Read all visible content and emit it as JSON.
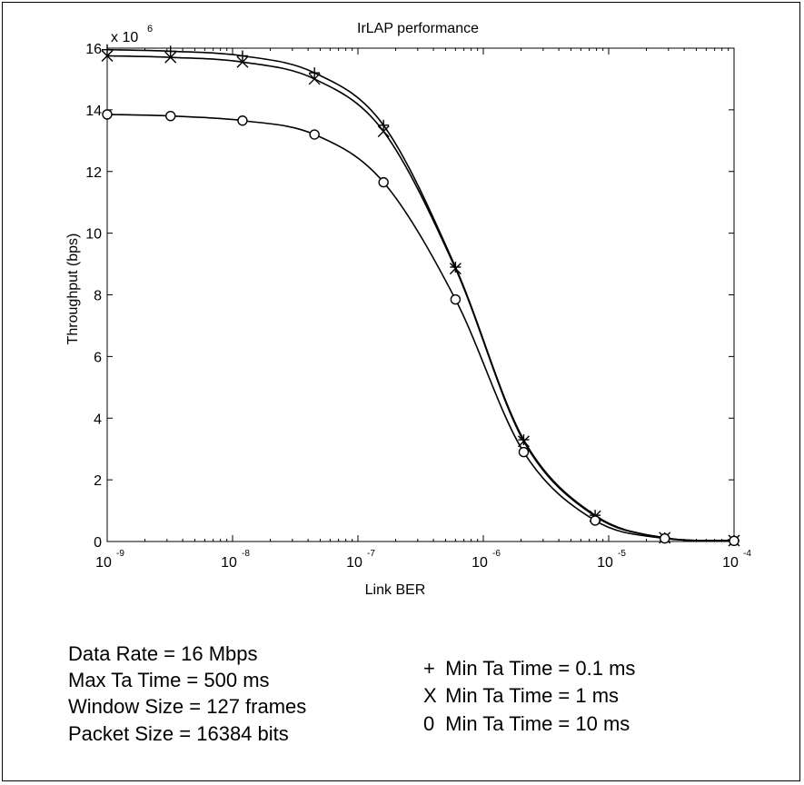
{
  "chart_data": {
    "type": "line",
    "title": "IrLAP performance",
    "xlabel": "Link BER",
    "ylabel": "Throughput (bps)",
    "y_multiplier": "x 10",
    "y_multiplier_exp": "6",
    "x_scale": "log",
    "xlim": [
      1e-09,
      0.0001
    ],
    "ylim": [
      0,
      16
    ],
    "grid": false,
    "x_ticks": [
      {
        "base": "10",
        "exp": "-9",
        "value": 1e-09
      },
      {
        "base": "10",
        "exp": "-8",
        "value": 1e-08
      },
      {
        "base": "10",
        "exp": "-7",
        "value": 1e-07
      },
      {
        "base": "10",
        "exp": "-6",
        "value": 1e-06
      },
      {
        "base": "10",
        "exp": "-5",
        "value": 1e-05
      },
      {
        "base": "10",
        "exp": "-4",
        "value": 0.0001
      }
    ],
    "y_ticks": [
      "0",
      "2",
      "4",
      "6",
      "8",
      "10",
      "12",
      "14",
      "16"
    ],
    "series": [
      {
        "name": "Min Ta Time = 0.1 ms",
        "marker": "+",
        "x": [
          1e-09,
          3.2e-09,
          1.2e-08,
          4.5e-08,
          1.6e-07,
          6e-07,
          2.1e-06,
          7.8e-06,
          2.8e-05,
          0.0001
        ],
        "y": [
          15.95,
          15.9,
          15.75,
          15.2,
          13.5,
          8.9,
          3.3,
          0.85,
          0.12,
          0.03
        ]
      },
      {
        "name": "Min Ta Time = 1 ms",
        "marker": "x",
        "x": [
          1e-09,
          3.2e-09,
          1.2e-08,
          4.5e-08,
          1.6e-07,
          6e-07,
          2.1e-06,
          7.8e-06,
          2.8e-05,
          0.0001
        ],
        "y": [
          15.75,
          15.7,
          15.55,
          15.0,
          13.3,
          8.85,
          3.25,
          0.82,
          0.12,
          0.03
        ]
      },
      {
        "name": "Min Ta Time = 10 ms",
        "marker": "o",
        "x": [
          1e-09,
          3.2e-09,
          1.2e-08,
          4.5e-08,
          1.6e-07,
          6e-07,
          2.1e-06,
          7.8e-06,
          2.8e-05,
          0.0001
        ],
        "y": [
          13.85,
          13.8,
          13.65,
          13.2,
          11.65,
          7.85,
          2.9,
          0.68,
          0.1,
          0.02
        ]
      }
    ]
  },
  "parameters": [
    "Data Rate = 16 Mbps",
    "Max Ta Time = 500 ms",
    "Window Size = 127 frames",
    "Packet Size = 16384 bits"
  ],
  "legend": [
    {
      "symbol": "+",
      "text": "Min Ta Time = 0.1 ms"
    },
    {
      "symbol": "X",
      "text": "Min Ta Time = 1 ms"
    },
    {
      "symbol": "0",
      "text": "Min Ta Time = 10 ms"
    }
  ]
}
